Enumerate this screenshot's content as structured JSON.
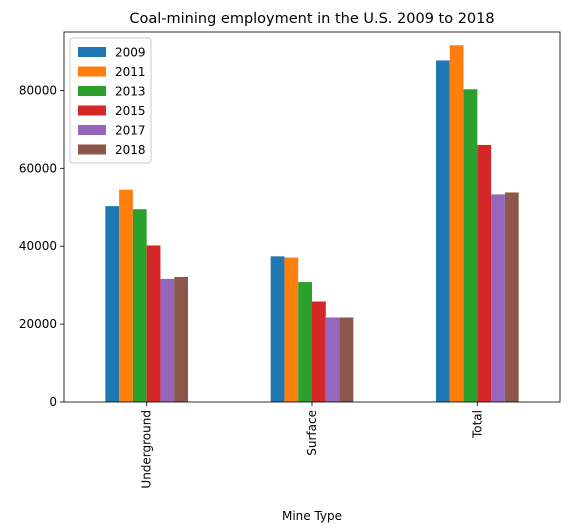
{
  "chart_data": {
    "type": "bar",
    "title": "Coal-mining employment in the U.S. 2009 to 2018",
    "xlabel": "Mine Type",
    "ylabel": "",
    "categories": [
      "Underground",
      "Surface",
      "Total"
    ],
    "series": [
      {
        "name": "2009",
        "color": "#1f77b4",
        "values": [
          50300,
          37400,
          87700
        ]
      },
      {
        "name": "2011",
        "color": "#ff7f0e",
        "values": [
          54500,
          37100,
          91600
        ]
      },
      {
        "name": "2013",
        "color": "#2ca02c",
        "values": [
          49500,
          30800,
          80300
        ]
      },
      {
        "name": "2015",
        "color": "#d62728",
        "values": [
          40200,
          25800,
          66000
        ]
      },
      {
        "name": "2017",
        "color": "#9467bd",
        "values": [
          31600,
          21700,
          53300
        ]
      },
      {
        "name": "2018",
        "color": "#8c564b",
        "values": [
          32100,
          21700,
          53800
        ]
      }
    ],
    "ylim": [
      0,
      95000
    ],
    "yticks": [
      0,
      20000,
      40000,
      60000,
      80000
    ],
    "grid": false,
    "legend_position": "upper-left"
  }
}
